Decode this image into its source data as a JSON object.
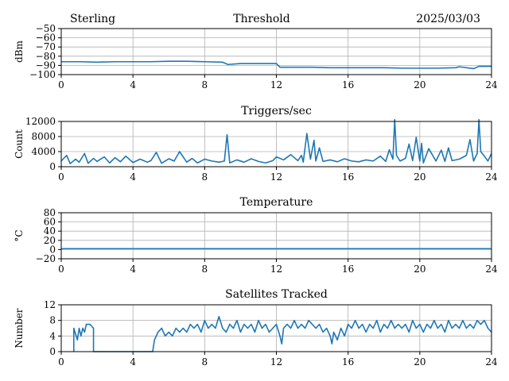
{
  "header": {
    "left": "Sterling",
    "center": "Threshold",
    "right": "2025/03/03"
  },
  "colors": {
    "line": "#1f77b4",
    "grid": "#b0b0b0"
  },
  "chart_data": [
    {
      "type": "line",
      "title": "Threshold",
      "xlabel": "",
      "ylabel": "dBm",
      "xlim": [
        0,
        24
      ],
      "ylim": [
        -100,
        -50
      ],
      "xticks": [
        0,
        4,
        8,
        12,
        16,
        20,
        24
      ],
      "yticks": [
        -100,
        -90,
        -80,
        -70,
        -60,
        -50
      ],
      "yticklabels": [
        "−100",
        "−90",
        "−80",
        "−70",
        "−60",
        "−50"
      ],
      "grid": true,
      "series": [
        {
          "x": [
            0,
            1,
            2,
            3,
            4,
            5,
            6,
            7,
            8,
            9,
            9.3,
            10,
            11,
            12,
            12.2,
            13,
            14,
            15,
            16,
            17,
            18,
            19,
            20,
            21,
            22,
            22.2,
            23,
            23.3,
            24
          ],
          "y": [
            -86,
            -86,
            -86.5,
            -86,
            -86,
            -86,
            -85.5,
            -85.5,
            -86,
            -86.5,
            -89,
            -88,
            -88,
            -88,
            -92,
            -92,
            -92,
            -92.5,
            -92.5,
            -92.5,
            -92.5,
            -93,
            -93,
            -93,
            -92.5,
            -91.5,
            -93.5,
            -91,
            -91
          ]
        }
      ]
    },
    {
      "type": "line",
      "title": "Triggers/sec",
      "xlabel": "",
      "ylabel": "Count",
      "xlim": [
        0,
        24
      ],
      "ylim": [
        0,
        12000
      ],
      "xticks": [
        0,
        4,
        8,
        12,
        16,
        20,
        24
      ],
      "yticks": [
        0,
        4000,
        8000,
        12000
      ],
      "yticklabels": [
        "0",
        "4000",
        "8000",
        "12000"
      ],
      "grid": true,
      "series": [
        {
          "x": [
            0,
            0.3,
            0.5,
            0.8,
            1,
            1.3,
            1.5,
            1.8,
            2,
            2.4,
            2.7,
            3,
            3.3,
            3.6,
            4,
            4.4,
            4.8,
            5,
            5.3,
            5.6,
            6,
            6.3,
            6.6,
            7,
            7.3,
            7.6,
            8,
            8.4,
            8.8,
            9.1,
            9.25,
            9.4,
            9.8,
            10.2,
            10.6,
            11,
            11.4,
            11.8,
            12,
            12.4,
            12.8,
            13.2,
            13.4,
            13.5,
            13.7,
            13.9,
            14.1,
            14.2,
            14.4,
            14.6,
            15,
            15.4,
            15.8,
            16.2,
            16.6,
            17,
            17.4,
            17.8,
            18.1,
            18.3,
            18.5,
            18.6,
            18.7,
            18.9,
            19.2,
            19.4,
            19.6,
            19.8,
            20,
            20.1,
            20.2,
            20.5,
            20.9,
            21.2,
            21.4,
            21.6,
            21.8,
            22.2,
            22.6,
            22.8,
            23,
            23.2,
            23.3,
            23.4,
            23.6,
            23.8,
            24
          ],
          "y": [
            1500,
            3000,
            800,
            2000,
            1200,
            3500,
            900,
            2200,
            1400,
            2600,
            1000,
            2400,
            1300,
            2800,
            1100,
            2000,
            1200,
            1600,
            3800,
            900,
            2100,
            1500,
            4000,
            1200,
            2200,
            1000,
            2000,
            1500,
            1200,
            1500,
            8500,
            1000,
            1800,
            1200,
            2100,
            1400,
            1000,
            1600,
            2600,
            1800,
            3200,
            1600,
            3000,
            1200,
            8800,
            2000,
            7000,
            1500,
            5000,
            1400,
            1800,
            1300,
            2100,
            1500,
            1300,
            1800,
            1500,
            2800,
            1400,
            4500,
            2000,
            12500,
            3000,
            1500,
            2200,
            6000,
            1600,
            7800,
            1500,
            6200,
            1000,
            4800,
            1500,
            4400,
            1400,
            5000,
            1600,
            2000,
            3000,
            7200,
            1500,
            3500,
            12500,
            4000,
            2800,
            1500,
            3500
          ]
        }
      ]
    },
    {
      "type": "line",
      "title": "Temperature",
      "xlabel": "",
      "ylabel": "°C",
      "xlim": [
        0,
        24
      ],
      "ylim": [
        -20,
        80
      ],
      "xticks": [
        0,
        4,
        8,
        12,
        16,
        20,
        24
      ],
      "yticks": [
        -20,
        0,
        20,
        40,
        60,
        80
      ],
      "yticklabels": [
        "−20",
        "0",
        "20",
        "40",
        "60",
        "80"
      ],
      "grid": true,
      "series": [
        {
          "x": [
            0,
            24
          ],
          "y": [
            2,
            2
          ]
        }
      ]
    },
    {
      "type": "line",
      "title": "Satellites Tracked",
      "xlabel": "",
      "ylabel": "Number",
      "xlim": [
        0,
        24
      ],
      "ylim": [
        0,
        12
      ],
      "xticks": [
        0,
        4,
        8,
        12,
        16,
        20,
        24
      ],
      "yticks": [
        0,
        4,
        8,
        12
      ],
      "yticklabels": [
        "0",
        "4",
        "8",
        "12"
      ],
      "grid": true,
      "series": [
        {
          "x": [
            0.7,
            0.7,
            0.9,
            1.0,
            1.1,
            1.2,
            1.3,
            1.4,
            1.6,
            1.8,
            1.8,
            2.5,
            3.5,
            4.5,
            5.1,
            5.2,
            5.4,
            5.6,
            5.8,
            6.0,
            6.2,
            6.4,
            6.6,
            6.8,
            7.0,
            7.2,
            7.4,
            7.6,
            7.8,
            8.0,
            8.2,
            8.4,
            8.6,
            8.8,
            9.0,
            9.2,
            9.4,
            9.6,
            9.8,
            10.0,
            10.2,
            10.4,
            10.6,
            10.8,
            11.0,
            11.2,
            11.4,
            11.6,
            11.8,
            12.0,
            12.2,
            12.3,
            12.4,
            12.6,
            12.8,
            13.0,
            13.2,
            13.4,
            13.6,
            13.8,
            14.0,
            14.2,
            14.4,
            14.6,
            14.8,
            15.0,
            15.1,
            15.2,
            15.4,
            15.6,
            15.8,
            16.0,
            16.2,
            16.4,
            16.6,
            16.8,
            17.0,
            17.2,
            17.4,
            17.6,
            17.8,
            18.0,
            18.2,
            18.4,
            18.6,
            18.8,
            19.0,
            19.2,
            19.4,
            19.6,
            19.8,
            20.0,
            20.2,
            20.4,
            20.6,
            20.8,
            21.0,
            21.2,
            21.4,
            21.6,
            21.8,
            22.0,
            22.2,
            22.4,
            22.6,
            22.8,
            23.0,
            23.2,
            23.4,
            23.6,
            23.8,
            24.0
          ],
          "y": [
            0,
            6,
            3,
            6,
            4,
            6,
            5,
            7,
            7,
            6,
            0,
            0,
            0,
            0,
            0,
            3,
            5,
            6,
            4,
            5,
            4,
            6,
            5,
            6,
            5,
            7,
            6,
            7,
            5,
            8,
            6,
            7,
            6,
            9,
            6,
            5,
            7,
            6,
            8,
            5,
            7,
            6,
            7,
            5,
            8,
            6,
            7,
            5,
            6,
            7,
            4,
            2,
            6,
            7,
            6,
            8,
            6,
            7,
            6,
            8,
            7,
            6,
            7,
            5,
            6,
            4,
            2,
            5,
            3,
            6,
            4,
            7,
            6,
            8,
            6,
            7,
            5,
            7,
            6,
            8,
            5,
            7,
            6,
            8,
            6,
            7,
            6,
            7,
            5,
            8,
            6,
            7,
            5,
            7,
            6,
            8,
            6,
            7,
            5,
            8,
            6,
            7,
            6,
            8,
            6,
            7,
            6,
            8,
            7,
            8,
            6,
            5
          ]
        }
      ]
    }
  ]
}
